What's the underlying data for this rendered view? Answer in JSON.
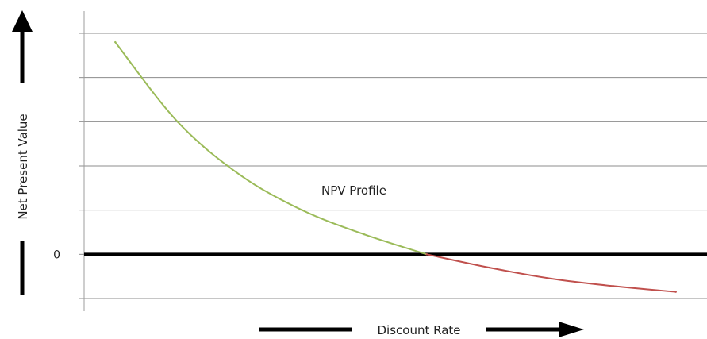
{
  "chart_data": {
    "type": "line",
    "xlabel": "Discount Rate",
    "ylabel": "Net Present Value",
    "annotation": "NPV Profile",
    "y_ticks": [
      "0"
    ],
    "grid": true,
    "legend": "none",
    "xlim": [
      0,
      100
    ],
    "ylim": [
      -10,
      50
    ],
    "series": [
      {
        "segment": "positive",
        "color": "#9bbb59",
        "x": [
          5,
          15,
          25,
          35,
          45,
          55
        ],
        "y": [
          48,
          30,
          18,
          10,
          4.5,
          0
        ]
      },
      {
        "segment": "negative",
        "color": "#c0504d",
        "x": [
          55,
          65,
          75,
          85,
          95
        ],
        "y": [
          0,
          -3,
          -5.5,
          -7.2,
          -8.5
        ]
      }
    ],
    "gridline_y_values": [
      -10,
      0,
      10,
      20,
      30,
      40,
      50
    ]
  }
}
